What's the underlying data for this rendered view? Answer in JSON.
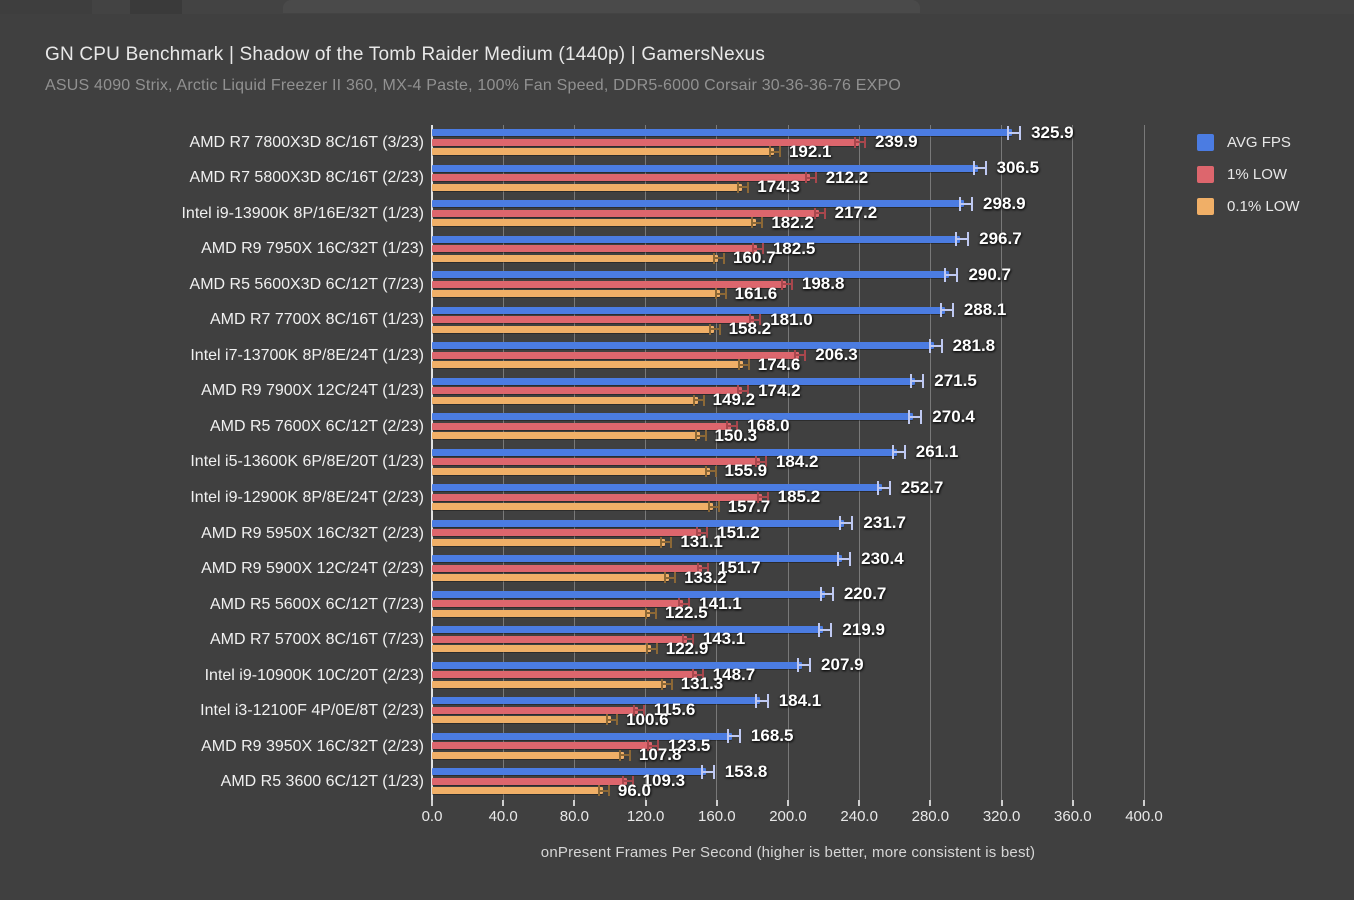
{
  "header": {
    "title": "GN CPU Benchmark | Shadow of the Tomb Raider Medium (1440p) | GamersNexus",
    "subtitle": "ASUS 4090 Strix, Arctic Liquid Freezer II 360, MX-4 Paste, 100% Fan Speed, DDR5-6000 Corsair 30-36-36-76 EXPO"
  },
  "colors": {
    "background": "#404040",
    "avg_fps_bar": "#4b7ce2",
    "one_pct_low_bar": "#dd666d",
    "point_one_pct_low_bar": "#f0af67",
    "avg_fps_whisker": "#bfc9f2",
    "one_pct_low_whisker": "#a8474d",
    "point_one_pct_low_whisker": "#8c6836",
    "gridline": "rgba(255,255,255,0.30)",
    "axis_line": "#e3e3e3"
  },
  "legend": {
    "items": [
      {
        "label": "AVG FPS",
        "color": "#4b7ce2"
      },
      {
        "label": "1% LOW",
        "color": "#dd666d"
      },
      {
        "label": "0.1% LOW",
        "color": "#f0af67"
      }
    ]
  },
  "chart_data": {
    "type": "bar",
    "orientation": "horizontal",
    "title": "GN CPU Benchmark | Shadow of the Tomb Raider Medium (1440p) | GamersNexus",
    "subtitle": "ASUS 4090 Strix, Arctic Liquid Freezer II 360, MX-4 Paste, 100% Fan Speed, DDR5-6000 Corsair 30-36-36-76 EXPO",
    "categories": [
      "AMD R7 7800X3D 8C/16T (3/23)",
      "AMD R7 5800X3D 8C/16T (2/23)",
      "Intel i9-13900K 8P/16E/32T (1/23)",
      "AMD R9 7950X 16C/32T (1/23)",
      "AMD R5 5600X3D 6C/12T (7/23)",
      "AMD R7 7700X 8C/16T (1/23)",
      "Intel i7-13700K 8P/8E/24T (1/23)",
      "AMD R9 7900X 12C/24T (1/23)",
      "AMD R5 7600X 6C/12T (2/23)",
      "Intel i5-13600K 6P/8E/20T (1/23)",
      "Intel i9-12900K 8P/8E/24T (2/23)",
      "AMD R9 5950X 16C/32T (2/23)",
      "AMD R9 5900X 12C/24T (2/23)",
      "AMD R5 5600X 6C/12T (7/23)",
      "AMD R7 5700X 8C/16T (7/23)",
      "Intel i9-10900K 10C/20T (2/23)",
      "Intel i3-12100F 4P/0E/8T (2/23)",
      "AMD R9 3950X 16C/32T (2/23)",
      "AMD R5 3600 6C/12T (1/23)"
    ],
    "series": [
      {
        "name": "AVG FPS",
        "color": "#4b7ce2",
        "whisker_color": "#bfc9f2",
        "values": [
          325.9,
          306.5,
          298.9,
          296.7,
          290.7,
          288.1,
          281.8,
          271.5,
          270.4,
          261.1,
          252.7,
          231.7,
          230.4,
          220.7,
          219.9,
          207.9,
          184.1,
          168.5,
          153.8
        ]
      },
      {
        "name": "1% LOW",
        "color": "#dd666d",
        "whisker_color": "#a8474d",
        "values": [
          239.9,
          212.2,
          217.2,
          182.5,
          198.8,
          181.0,
          206.3,
          174.2,
          168.0,
          184.2,
          185.2,
          151.2,
          151.7,
          141.1,
          143.1,
          148.7,
          115.6,
          123.5,
          109.3
        ]
      },
      {
        "name": "0.1% LOW",
        "color": "#f0af67",
        "whisker_color": "#8c6836",
        "values": [
          192.1,
          174.3,
          182.2,
          160.7,
          161.6,
          158.2,
          174.6,
          149.2,
          150.3,
          155.9,
          157.7,
          131.1,
          133.2,
          122.5,
          122.9,
          131.3,
          100.6,
          107.8,
          96.0
        ]
      }
    ],
    "xlabel": "onPresent Frames Per Second (higher is better, more consistent is best)",
    "xlim": [
      0,
      400
    ],
    "xticks": [
      0,
      40,
      80,
      120,
      160,
      200,
      240,
      280,
      320,
      360,
      400
    ],
    "xtick_labels": [
      "0.0",
      "40.0",
      "80.0",
      "120.0",
      "160.0",
      "200.0",
      "240.0",
      "280.0",
      "320.0",
      "360.0",
      "400.0"
    ],
    "grid": true,
    "value_labels": true,
    "legend_position": "top-right"
  }
}
